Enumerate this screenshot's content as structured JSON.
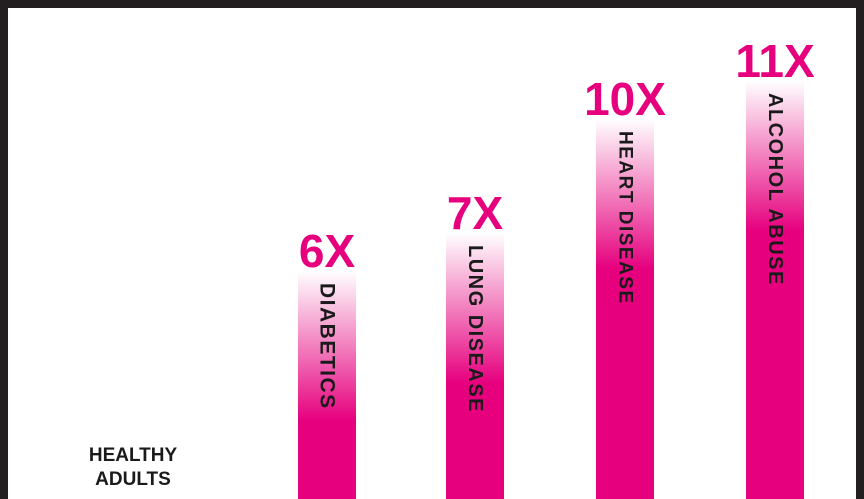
{
  "chart_data": {
    "type": "bar",
    "title": "",
    "xlabel": "",
    "ylabel": "",
    "baseline_category": {
      "lines": [
        "HEALTHY",
        "ADULTS"
      ]
    },
    "categories": [
      "DIABETICS",
      "LUNG DISEASE",
      "HEART DISEASE",
      "ALCOHOL ABUSE"
    ],
    "values": [
      6,
      7,
      10,
      11
    ],
    "value_labels": [
      "6X",
      "7X",
      "10X",
      "11X"
    ],
    "ylim": [
      0,
      12
    ],
    "grid": false,
    "legend": "none"
  },
  "colors": {
    "bar": "#e6007e",
    "bar_fade": "#ffffff",
    "value_text": "#e6007e",
    "label_text": "#1a1a1a",
    "frame": "#231f20"
  }
}
